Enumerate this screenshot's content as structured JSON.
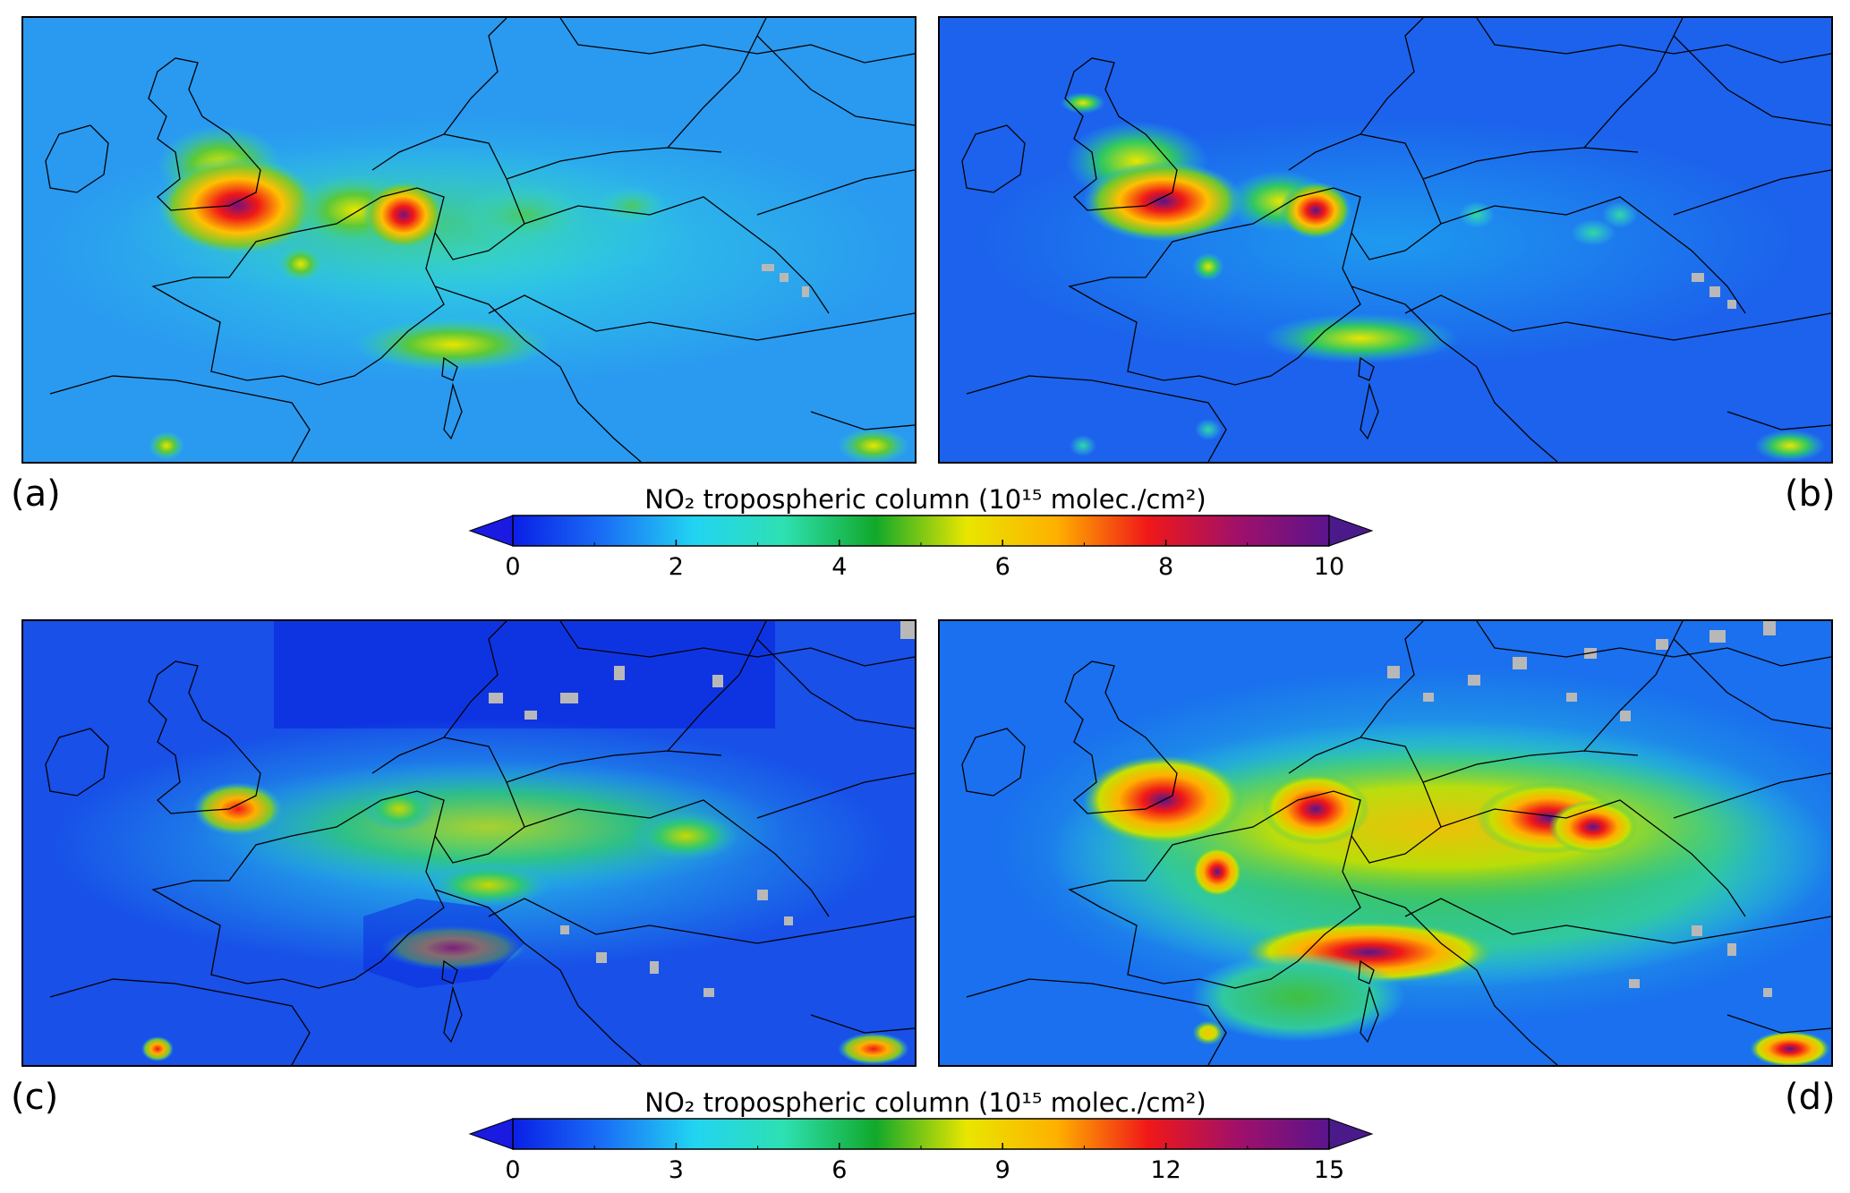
{
  "panels": [
    {
      "id": "a",
      "label": "(a)"
    },
    {
      "id": "b",
      "label": "(b)"
    },
    {
      "id": "c",
      "label": "(c)"
    },
    {
      "id": "d",
      "label": "(d)"
    }
  ],
  "colorbars": [
    {
      "title": "NO₂ tropospheric column (10¹⁵ molec./cm²)",
      "min": 0,
      "max": 10,
      "ticks": [
        "0",
        "2",
        "4",
        "6",
        "8",
        "10"
      ],
      "extend": "both"
    },
    {
      "title": "NO₂ tropospheric column (10¹⁵ molec./cm²)",
      "min": 0,
      "max": 15,
      "ticks": [
        "0",
        "3",
        "6",
        "9",
        "12",
        "15"
      ],
      "extend": "both"
    }
  ],
  "colormap": [
    "#0a1fe6",
    "#1a6ff5",
    "#22d4f2",
    "#2ee0b0",
    "#11a82a",
    "#e8e600",
    "#ffb000",
    "#f01818",
    "#a0106a",
    "#5a148c"
  ],
  "under_color": "#1a1ae0",
  "over_color": "#4a1a8a",
  "no_data_color": "#b8b8b8",
  "border_color": "#000000"
}
